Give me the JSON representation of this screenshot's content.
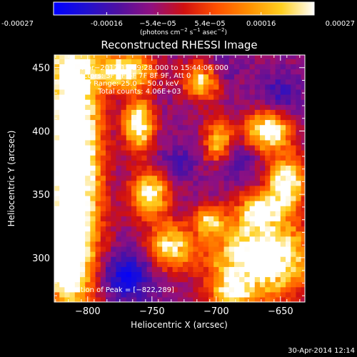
{
  "chart_data": {
    "type": "heatmap",
    "title": "Reconstructed RHESSI Image",
    "xlabel": "Heliocentric X (arcsec)",
    "ylabel": "Heliocentric Y (arcsec)",
    "xlim": [
      -826,
      -631
    ],
    "ylim": [
      265,
      460
    ],
    "x_ticks": [
      -800,
      -750,
      -700,
      -650
    ],
    "x_tick_labels": [
      "−800",
      "−750",
      "−700",
      "−650"
    ],
    "y_ticks": [
      300,
      350,
      400,
      450
    ],
    "y_tick_labels": [
      "300",
      "350",
      "400",
      "450"
    ],
    "colorbar": {
      "min": -0.00027,
      "max": 0.00027,
      "ticks": [
        -0.00027,
        -0.00016,
        -5.4e-05,
        5.4e-05,
        0.00016,
        0.00027
      ],
      "tick_labels": [
        "-0.00027",
        "-0.00016",
        "−5.4e−05",
        "5.4e−05",
        "0.00016",
        "0.00027"
      ],
      "units_prefix": "(photons cm",
      "units_exp1": "−2",
      "units_mid": " s",
      "units_exp2": "−1",
      "units_mid2": " asec",
      "units_exp3": "−2",
      "units_suffix": ")",
      "stops": [
        "#0000ff",
        "#2010d0",
        "#5010a0",
        "#901080",
        "#d01010",
        "#ff5000",
        "#ff9000",
        "#ffd020",
        "#ffffff"
      ]
    },
    "annotations": [
      "2−Apr−2012 15:39:28.000 to 15:44:06.000",
      "Detectors: 3F 5F 6F 7F 8F 9F, Att 0",
      "Energy Range: 25.0 − 50.0 keV",
      "Clean     Total counts: 4.06E+03"
    ],
    "peak_label": "Position of Peak = [−822,289]",
    "peak": [
      -822,
      289
    ],
    "grid": false,
    "grid_resolution": 4,
    "bright_regions": [
      {
        "x": -812,
        "y": 380,
        "sx": 14,
        "sy": 85,
        "a": 1.15
      },
      {
        "x": -818,
        "y": 300,
        "sx": 8,
        "sy": 14,
        "a": 1.0
      },
      {
        "x": -770,
        "y": 448,
        "sx": 14,
        "sy": 10,
        "a": 0.8
      },
      {
        "x": -760,
        "y": 405,
        "sx": 8,
        "sy": 14,
        "a": 0.75
      },
      {
        "x": -752,
        "y": 350,
        "sx": 10,
        "sy": 12,
        "a": 0.7
      },
      {
        "x": -735,
        "y": 310,
        "sx": 12,
        "sy": 12,
        "a": 0.6
      },
      {
        "x": -710,
        "y": 440,
        "sx": 10,
        "sy": 10,
        "a": 0.7
      },
      {
        "x": -698,
        "y": 390,
        "sx": 8,
        "sy": 12,
        "a": 0.65
      },
      {
        "x": -705,
        "y": 330,
        "sx": 8,
        "sy": 8,
        "a": 0.5
      },
      {
        "x": -660,
        "y": 400,
        "sx": 12,
        "sy": 10,
        "a": 0.8
      },
      {
        "x": -645,
        "y": 360,
        "sx": 10,
        "sy": 14,
        "a": 0.75
      },
      {
        "x": -665,
        "y": 300,
        "sx": 26,
        "sy": 20,
        "a": 0.95
      },
      {
        "x": -665,
        "y": 338,
        "sx": 12,
        "sy": 10,
        "a": 0.6
      },
      {
        "x": -688,
        "y": 272,
        "sx": 10,
        "sy": 8,
        "a": 0.55
      }
    ],
    "dark_regions": [
      {
        "x": -770,
        "y": 285,
        "sx": 14,
        "sy": 14,
        "a": 0.9
      },
      {
        "x": -690,
        "y": 380,
        "sx": 12,
        "sy": 12,
        "a": 0.7
      },
      {
        "x": -700,
        "y": 445,
        "sx": 10,
        "sy": 10,
        "a": 0.6
      },
      {
        "x": -650,
        "y": 430,
        "sx": 10,
        "sy": 12,
        "a": 0.5
      },
      {
        "x": -730,
        "y": 375,
        "sx": 10,
        "sy": 10,
        "a": 0.4
      }
    ]
  },
  "footer": {
    "timestamp": "30-Apr-2014 12:14"
  }
}
